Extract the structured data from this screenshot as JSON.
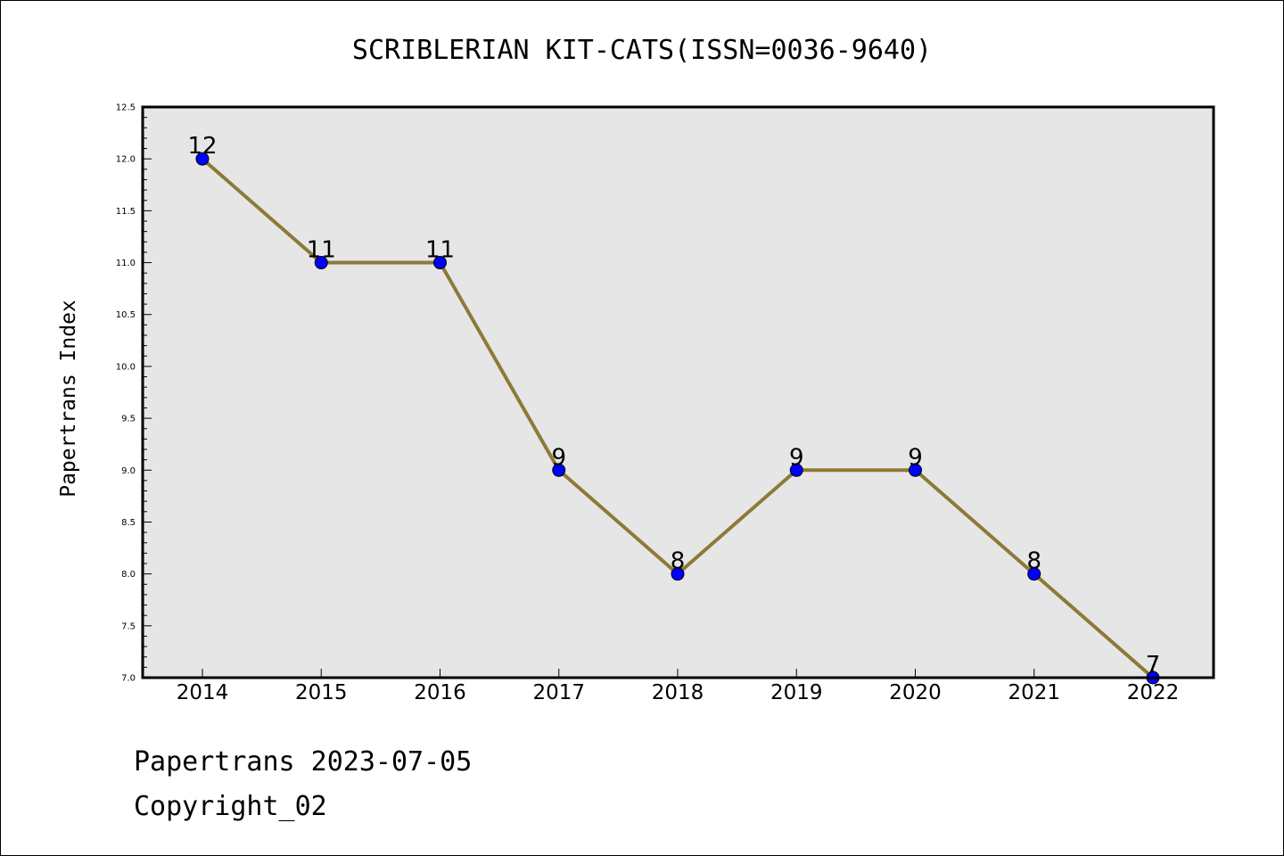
{
  "chart_data": {
    "type": "line",
    "title": "SCRIBLERIAN KIT-CATS(ISSN=0036-9640)",
    "xlabel": "",
    "ylabel": "Papertrans Index",
    "categories": [
      "2014",
      "2015",
      "2016",
      "2017",
      "2018",
      "2019",
      "2020",
      "2021",
      "2022"
    ],
    "series": [
      {
        "values": [
          12,
          11,
          11,
          9,
          8,
          9,
          9,
          8,
          7
        ]
      }
    ],
    "ylim": [
      7.0,
      12.5
    ],
    "yticks": [
      "7.0",
      "7.5",
      "8.0",
      "8.5",
      "9.0",
      "9.5",
      "10.0",
      "10.5",
      "11.0",
      "11.5",
      "12.0",
      "12.5"
    ],
    "grid": false,
    "legend": "none",
    "colors": {
      "line": "#8c7a37",
      "marker": "#0000ff",
      "plot_background": "#e6e6e6"
    }
  },
  "footer": {
    "line1": "Papertrans 2023-07-05",
    "line2": "Copyright_02"
  }
}
